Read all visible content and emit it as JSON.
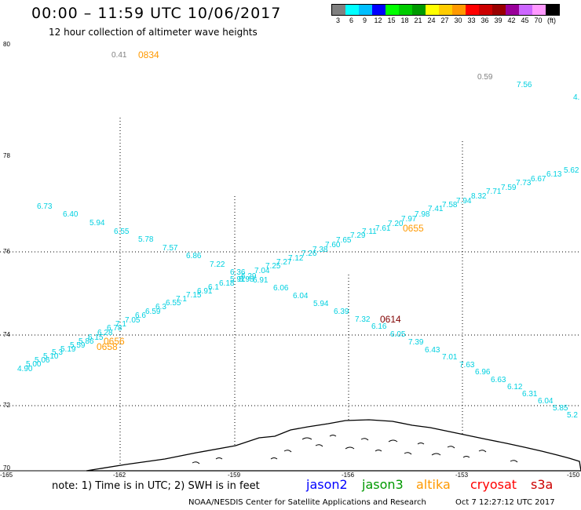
{
  "header": {
    "title": "00:00 – 11:59 UTC 10/06/2017",
    "subtitle": "12 hour collection of altimeter wave heights"
  },
  "legend": {
    "colors": [
      "#808080",
      "#00ffff",
      "#00bfff",
      "#0000ff",
      "#00ff00",
      "#00cc00",
      "#009900",
      "#ffff00",
      "#ffcc00",
      "#ff9900",
      "#ff0000",
      "#cc0000",
      "#990000",
      "#990099",
      "#cc66ff",
      "#ff99ff",
      "#000000"
    ],
    "labels": [
      "3",
      "6",
      "9",
      "12",
      "15",
      "18",
      "21",
      "24",
      "27",
      "30",
      "33",
      "36",
      "39",
      "42",
      "45",
      "70",
      "(ft)"
    ]
  },
  "axes": {
    "lat_labels": [
      "80",
      "78",
      "76",
      "74",
      "72",
      "70"
    ],
    "lon_labels": [
      "-165",
      "-162",
      "-159",
      "-156",
      "-153",
      "-150"
    ]
  },
  "colors": {
    "cyan": "#00d0e0",
    "orange": "#ff9900",
    "darkred": "#800000",
    "gray": "#808080",
    "jason2": "#0000ff",
    "jason3": "#009900",
    "altika": "#ff9900",
    "cryosat": "#ff0000",
    "s3a": "#cc0000"
  },
  "observations": {
    "gray": [
      "0.41",
      "0.59"
    ],
    "top_right": [
      "7.56",
      "4."
    ],
    "track_down": [
      "6.73",
      "6.40",
      "5.94",
      "6.55",
      "5.78",
      "7.57",
      "6.86",
      "7.22",
      "6.36",
      "6.91",
      "6.06",
      "6.04",
      "5.94",
      "6.39",
      "7.32",
      "6.16",
      "6.05",
      "7.39",
      "6.43",
      "7.01",
      "7.63",
      "6.96",
      "6.63",
      "6.12",
      "6.31",
      "6.04",
      "5.85",
      "5.2"
    ],
    "track_up": [
      "4.90",
      "5.00",
      "5.06",
      "5.10",
      "5.3",
      "5.19",
      "5.59",
      "5.86",
      "6.15",
      "6.28",
      "6.78",
      "7.1",
      "7.05",
      "6.6",
      "6.59",
      "6.3",
      "6.55",
      "7.1",
      "7.15",
      "6.91",
      "6.1",
      "6.18",
      "5.91",
      "6.29",
      "5.98",
      "7.04",
      "7.25",
      "7.27",
      "7.12",
      "7.26",
      "7.38",
      "7.60",
      "7.65",
      "7.29",
      "7.11",
      "7.61",
      "7.20",
      "7.97",
      "7.98",
      "7.41",
      "7.58",
      "7.94",
      "8.32",
      "7.71",
      "7.59",
      "7.73",
      "6.67",
      "6.13",
      "5.62"
    ],
    "time_tags": [
      "0834",
      "0655",
      "0614",
      "0656",
      "0658"
    ]
  },
  "notes": {
    "text": "note: 1) Time is in UTC; 2) SWH is in feet",
    "sats": [
      "jason2",
      "jason3",
      "altika",
      "cryosat",
      "s3a"
    ],
    "credit": "NOAA/NESDIS Center for Satellite Applications and Research",
    "timestamp": "Oct  7 12:27:12 UTC 2017"
  }
}
